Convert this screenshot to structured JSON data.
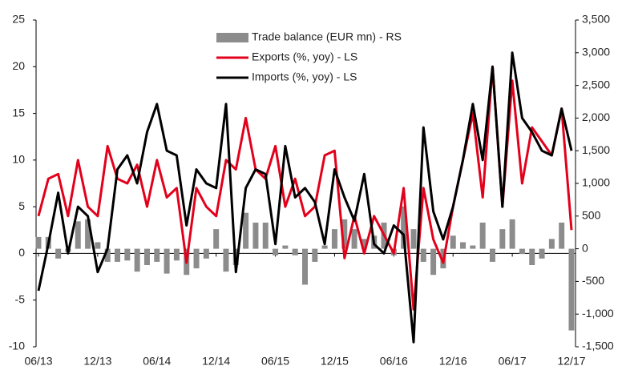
{
  "chart_data": {
    "type": "bar_line_combo",
    "categories": [
      "06/13",
      null,
      null,
      null,
      null,
      null,
      "12/13",
      null,
      null,
      null,
      null,
      null,
      "06/14",
      null,
      null,
      null,
      null,
      null,
      "12/14",
      null,
      null,
      null,
      null,
      null,
      "06/15",
      null,
      null,
      null,
      null,
      null,
      "12/15",
      null,
      null,
      null,
      null,
      null,
      "06/16",
      null,
      null,
      null,
      null,
      null,
      "12/16",
      null,
      null,
      null,
      null,
      null,
      "06/17",
      null,
      null,
      null,
      null,
      null,
      "12/17"
    ],
    "series": [
      {
        "name": "Trade balance (EUR mn) - RS",
        "type": "bar",
        "axis": "y2",
        "color": "#8c8c8c",
        "values": [
          180,
          180,
          -150,
          -50,
          420,
          450,
          100,
          -200,
          -200,
          -180,
          -350,
          -250,
          -200,
          -380,
          -180,
          -400,
          -300,
          -150,
          300,
          -350,
          -250,
          550,
          400,
          400,
          -100,
          50,
          -100,
          -550,
          -200,
          50,
          300,
          450,
          300,
          150,
          200,
          400,
          -100,
          650,
          300,
          -200,
          -400,
          -300,
          200,
          100,
          50,
          400,
          -200,
          300,
          450,
          -80,
          -250,
          -150,
          150,
          400,
          -1250
        ]
      },
      {
        "name": "Exports (%, yoy) - LS",
        "type": "line",
        "axis": "y",
        "color": "#e3001b",
        "values": [
          4,
          8,
          8.5,
          4,
          10,
          5,
          4,
          11.5,
          8,
          7.5,
          9.5,
          5,
          10,
          6,
          7,
          -1,
          7,
          5,
          4,
          10,
          9,
          14.5,
          9,
          8,
          11.5,
          5,
          8,
          4,
          5,
          10.5,
          11,
          -0.5,
          4,
          0,
          4,
          2,
          0,
          7,
          -6,
          7,
          1.5,
          -1,
          5,
          10,
          15,
          6,
          20,
          5,
          18.5,
          7.5,
          13.5,
          12,
          10.5,
          15.5,
          2.5
        ]
      },
      {
        "name": "Imports (%, yoy) - LS",
        "type": "line",
        "axis": "y",
        "color": "#000000",
        "values": [
          -4,
          1,
          6.5,
          0,
          5,
          4,
          -2,
          0.5,
          9,
          10.5,
          7.5,
          13,
          16,
          11,
          10.5,
          3,
          9,
          7.5,
          7,
          16,
          -2,
          7,
          9,
          8.5,
          1,
          11.5,
          6,
          7,
          5.5,
          1,
          9,
          6,
          3.5,
          8.5,
          1,
          0,
          3,
          2,
          -9.5,
          13.5,
          4.5,
          1.5,
          5,
          10,
          16,
          10,
          20,
          5,
          21.5,
          14.5,
          13,
          11,
          10.5,
          15.5,
          11
        ]
      }
    ],
    "ylim": [
      -10,
      25
    ],
    "yticks": [
      -10,
      -5,
      0,
      5,
      10,
      15,
      20,
      25
    ],
    "y2lim": [
      -1500,
      3500
    ],
    "y2ticks": [
      {
        "value": -1500,
        "label": "-1,500"
      },
      {
        "value": -1000,
        "label": "-1,000"
      },
      -500,
      0,
      500,
      {
        "value": 1000,
        "label": "1,000"
      },
      {
        "value": 1500,
        "label": "1,500"
      },
      {
        "value": 2000,
        "label": "2,000"
      },
      {
        "value": 2500,
        "label": "2,500"
      },
      {
        "value": 3000,
        "label": "3,000"
      },
      {
        "value": 3500,
        "label": "3,500"
      }
    ],
    "grid": false
  }
}
